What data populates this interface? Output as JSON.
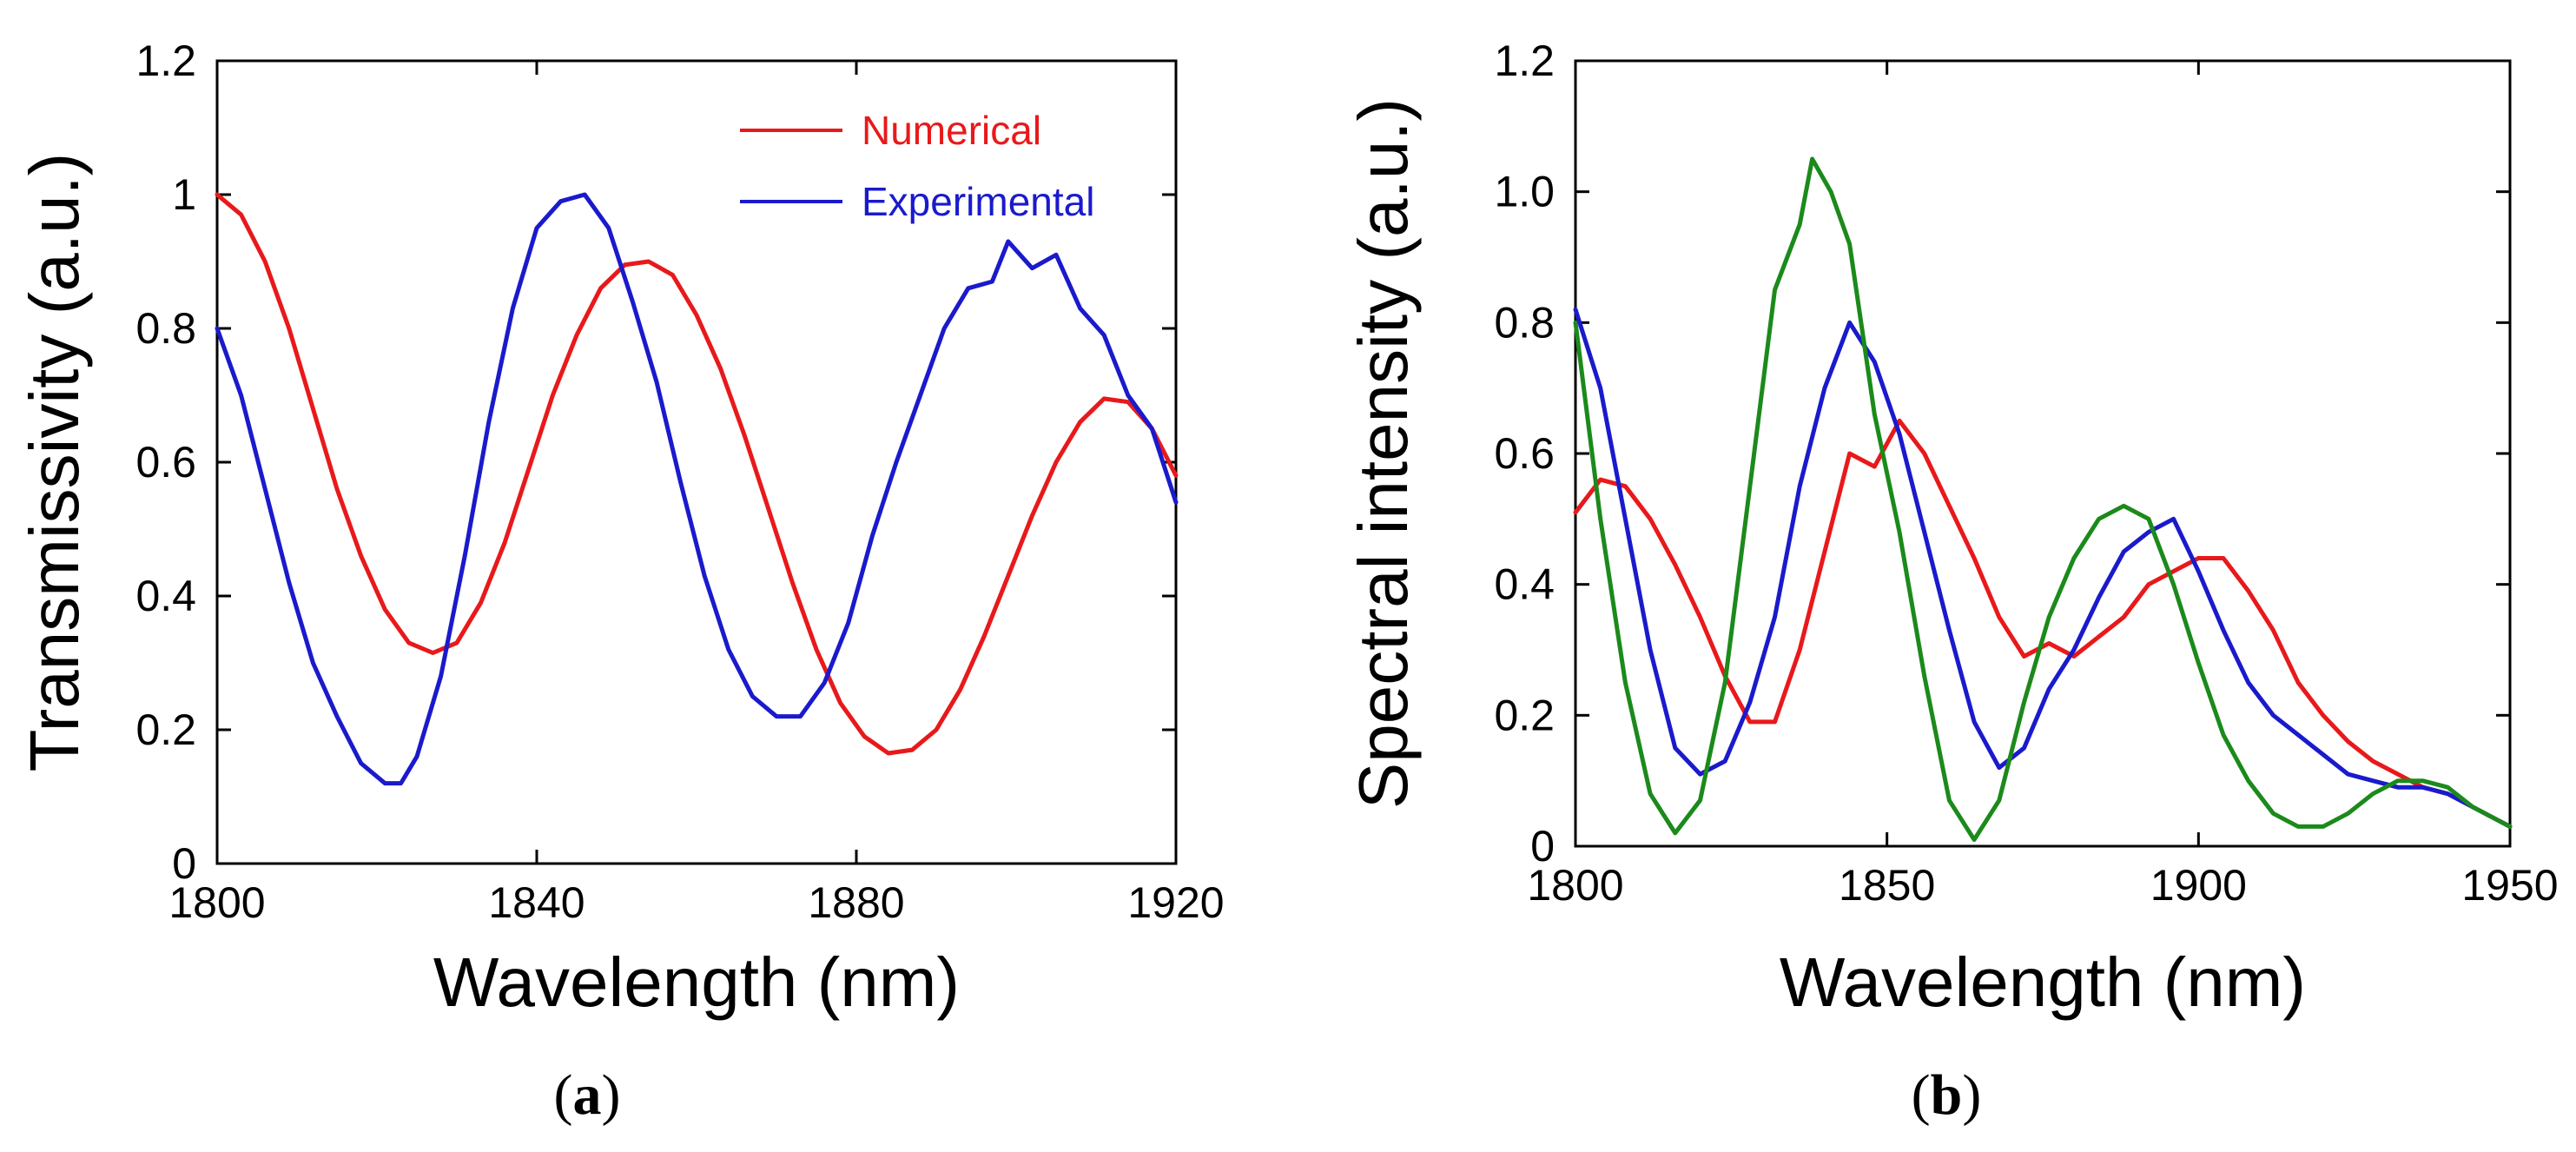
{
  "figure": {
    "panels": [
      {
        "id": "a",
        "label_open": "(",
        "label_letter": "a",
        "label_close": ")"
      },
      {
        "id": "b",
        "label_open": "(",
        "label_letter": "b",
        "label_close": ")"
      }
    ]
  },
  "chart_data": [
    {
      "type": "line",
      "panel": "a",
      "title": "",
      "xlabel": "Wavelength (nm)",
      "ylabel": "Transmissivity (a.u.)",
      "xlim": [
        1800,
        1920
      ],
      "ylim": [
        0,
        1.2
      ],
      "xticks": [
        1800,
        1840,
        1880,
        1920
      ],
      "xtick_labels": [
        "1800",
        "1840",
        "1880",
        "1920"
      ],
      "yticks": [
        0,
        0.2,
        0.4,
        0.6,
        0.8,
        1,
        1.2
      ],
      "ytick_labels": [
        "0",
        "0.2",
        "0.4",
        "0.6",
        "0.8",
        "1",
        "1.2"
      ],
      "grid": false,
      "legend_position": "top-right",
      "series": [
        {
          "name": "Numerical",
          "color": "#e8191b",
          "x": [
            1800,
            1803,
            1806,
            1809,
            1812,
            1815,
            1818,
            1821,
            1824,
            1827,
            1830,
            1833,
            1836,
            1839,
            1842,
            1845,
            1848,
            1851,
            1854,
            1857,
            1860,
            1863,
            1866,
            1869,
            1872,
            1875,
            1878,
            1881,
            1884,
            1887,
            1890,
            1893,
            1896,
            1899,
            1902,
            1905,
            1908,
            1911,
            1914,
            1917,
            1920
          ],
          "y": [
            1.0,
            0.97,
            0.9,
            0.8,
            0.68,
            0.56,
            0.46,
            0.38,
            0.33,
            0.315,
            0.33,
            0.39,
            0.48,
            0.59,
            0.7,
            0.79,
            0.86,
            0.895,
            0.9,
            0.88,
            0.82,
            0.74,
            0.64,
            0.53,
            0.42,
            0.32,
            0.24,
            0.19,
            0.165,
            0.17,
            0.2,
            0.26,
            0.34,
            0.43,
            0.52,
            0.6,
            0.66,
            0.695,
            0.69,
            0.65,
            0.58
          ]
        },
        {
          "name": "Experimental",
          "color": "#1a1acc",
          "x": [
            1800,
            1803,
            1806,
            1809,
            1812,
            1815,
            1818,
            1821,
            1823,
            1825,
            1828,
            1831,
            1834,
            1837,
            1840,
            1843,
            1846,
            1849,
            1852,
            1855,
            1858,
            1861,
            1864,
            1867,
            1870,
            1873,
            1876,
            1879,
            1882,
            1885,
            1888,
            1891,
            1894,
            1897,
            1899,
            1902,
            1905,
            1908,
            1911,
            1914,
            1917,
            1920
          ],
          "y": [
            0.8,
            0.7,
            0.56,
            0.42,
            0.3,
            0.22,
            0.15,
            0.12,
            0.12,
            0.16,
            0.28,
            0.46,
            0.66,
            0.83,
            0.95,
            0.99,
            1.0,
            0.95,
            0.84,
            0.72,
            0.57,
            0.43,
            0.32,
            0.25,
            0.22,
            0.22,
            0.27,
            0.36,
            0.49,
            0.6,
            0.7,
            0.8,
            0.86,
            0.87,
            0.93,
            0.89,
            0.91,
            0.83,
            0.79,
            0.7,
            0.65,
            0.54
          ]
        }
      ]
    },
    {
      "type": "line",
      "panel": "b",
      "title": "",
      "xlabel": "Wavelength (nm)",
      "ylabel": "Spectral intensity (a.u.)",
      "xlim": [
        1800,
        1950
      ],
      "ylim": [
        0,
        1.2
      ],
      "xticks": [
        1800,
        1850,
        1900,
        1950
      ],
      "xtick_labels": [
        "1800",
        "1850",
        "1900",
        "1950"
      ],
      "yticks": [
        0,
        0.2,
        0.4,
        0.6,
        0.8,
        1.0,
        1.2
      ],
      "ytick_labels": [
        "0",
        "0.2",
        "0.4",
        "0.6",
        "0.8",
        "1.0",
        "1.2"
      ],
      "grid": false,
      "legend_position": "none",
      "series": [
        {
          "name": "red",
          "color": "#e8191b",
          "x": [
            1800,
            1804,
            1808,
            1812,
            1816,
            1820,
            1824,
            1828,
            1832,
            1836,
            1840,
            1844,
            1848,
            1852,
            1856,
            1860,
            1864,
            1868,
            1872,
            1876,
            1880,
            1884,
            1888,
            1892,
            1896,
            1900,
            1904,
            1908,
            1912,
            1916,
            1920,
            1924,
            1928,
            1932,
            1936,
            1940,
            1944,
            1948,
            1950
          ],
          "y": [
            0.51,
            0.56,
            0.55,
            0.5,
            0.43,
            0.35,
            0.26,
            0.19,
            0.19,
            0.3,
            0.45,
            0.6,
            0.58,
            0.65,
            0.6,
            0.52,
            0.44,
            0.35,
            0.29,
            0.31,
            0.29,
            0.32,
            0.35,
            0.4,
            0.42,
            0.44,
            0.44,
            0.39,
            0.33,
            0.25,
            0.2,
            0.16,
            0.13,
            0.11,
            0.09,
            0.08,
            0.06,
            0.04,
            0.03
          ]
        },
        {
          "name": "blue",
          "color": "#1a1acc",
          "x": [
            1800,
            1804,
            1808,
            1812,
            1816,
            1820,
            1824,
            1828,
            1832,
            1836,
            1840,
            1844,
            1848,
            1852,
            1856,
            1860,
            1864,
            1868,
            1872,
            1876,
            1880,
            1884,
            1888,
            1892,
            1896,
            1900,
            1904,
            1908,
            1912,
            1916,
            1920,
            1924,
            1928,
            1932,
            1936,
            1940,
            1944,
            1948,
            1950
          ],
          "y": [
            0.82,
            0.7,
            0.5,
            0.3,
            0.15,
            0.11,
            0.13,
            0.22,
            0.35,
            0.55,
            0.7,
            0.8,
            0.74,
            0.63,
            0.48,
            0.33,
            0.19,
            0.12,
            0.15,
            0.24,
            0.3,
            0.38,
            0.45,
            0.48,
            0.5,
            0.42,
            0.33,
            0.25,
            0.2,
            0.17,
            0.14,
            0.11,
            0.1,
            0.09,
            0.09,
            0.08,
            0.06,
            0.04,
            0.03
          ]
        },
        {
          "name": "green",
          "color": "#1b8a1b",
          "x": [
            1800,
            1804,
            1808,
            1812,
            1816,
            1820,
            1824,
            1828,
            1832,
            1836,
            1838,
            1841,
            1844,
            1848,
            1852,
            1856,
            1860,
            1864,
            1868,
            1872,
            1876,
            1880,
            1884,
            1888,
            1892,
            1896,
            1900,
            1904,
            1908,
            1912,
            1916,
            1920,
            1924,
            1928,
            1932,
            1936,
            1940,
            1944,
            1948,
            1950
          ],
          "y": [
            0.8,
            0.5,
            0.25,
            0.08,
            0.02,
            0.07,
            0.25,
            0.55,
            0.85,
            0.95,
            1.05,
            1.0,
            0.92,
            0.66,
            0.48,
            0.26,
            0.07,
            0.01,
            0.07,
            0.22,
            0.35,
            0.44,
            0.5,
            0.52,
            0.5,
            0.4,
            0.28,
            0.17,
            0.1,
            0.05,
            0.03,
            0.03,
            0.05,
            0.08,
            0.1,
            0.1,
            0.09,
            0.06,
            0.04,
            0.03
          ]
        }
      ]
    }
  ]
}
